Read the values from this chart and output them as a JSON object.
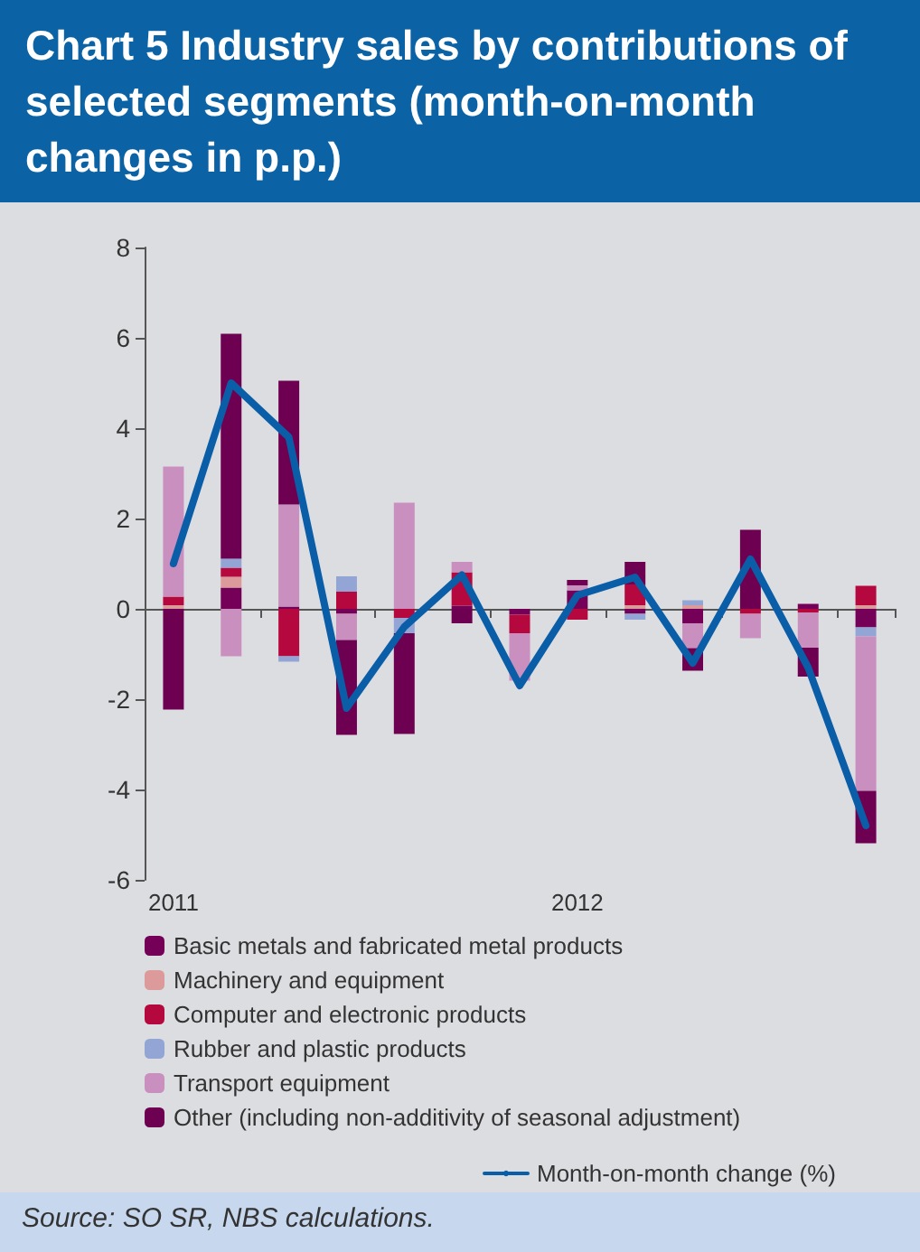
{
  "chart_data": {
    "type": "bar",
    "title": "Chart 5 Industry sales by contributions of selected segments (month-on-month changes in p.p.)",
    "categories": [
      "2011",
      null,
      null,
      null,
      null,
      null,
      null,
      "2012",
      null,
      null,
      null,
      null,
      null
    ],
    "stacked": true,
    "ylim": [
      -6,
      8
    ],
    "yticks": [
      -6,
      -4,
      -2,
      0,
      2,
      4,
      6,
      8
    ],
    "legend": "bottom",
    "marker": "none",
    "line_style": "solid",
    "series": [
      {
        "name": "Basic metals and fabricated metal products",
        "color": "#750058",
        "values": [
          null,
          0.47,
          0.05,
          -0.11,
          null,
          0.07,
          -0.13,
          0.41,
          -0.11,
          -0.32,
          null,
          0.11,
          -0.41
        ]
      },
      {
        "name": "Machinery and equipment",
        "color": "#dd9a9a",
        "values": [
          0.08,
          0.24,
          null,
          null,
          null,
          null,
          null,
          null,
          0.08,
          0.08,
          null,
          null,
          0.08
        ]
      },
      {
        "name": "Computer and electronic products",
        "color": "#b5083f",
        "values": [
          0.19,
          0.2,
          -1.05,
          0.38,
          -0.2,
          0.74,
          -0.41,
          -0.24,
          0.46,
          null,
          -0.11,
          -0.08,
          0.43
        ]
      },
      {
        "name": "Rubber and plastic products",
        "color": "#93a5d4",
        "values": [
          null,
          0.2,
          -0.12,
          0.34,
          -0.34,
          null,
          null,
          null,
          -0.13,
          0.11,
          null,
          null,
          -0.2
        ]
      },
      {
        "name": "Transport equipment",
        "color": "#c98fbe",
        "values": [
          2.88,
          -1.05,
          2.26,
          -0.58,
          2.35,
          0.23,
          -1.05,
          0.11,
          null,
          -0.55,
          -0.54,
          -0.78,
          -3.42
        ]
      },
      {
        "name": "Other (including non-additivity of seasonal adjustment)",
        "color": "#6e0052",
        "values": [
          -2.23,
          4.98,
          2.74,
          -2.1,
          -2.23,
          -0.32,
          null,
          0.12,
          0.5,
          -0.5,
          1.75,
          -0.64,
          -1.16
        ]
      },
      {
        "name": "Month-on-month change (%)",
        "type": "line",
        "color": "#0a5ea8",
        "values": [
          1.0,
          5.0,
          3.8,
          -2.2,
          -0.4,
          0.75,
          -1.7,
          0.3,
          0.7,
          -1.2,
          1.1,
          -1.3,
          -4.8
        ]
      }
    ],
    "annotations": [
      "Source: SO SR, NBS calculations."
    ]
  }
}
